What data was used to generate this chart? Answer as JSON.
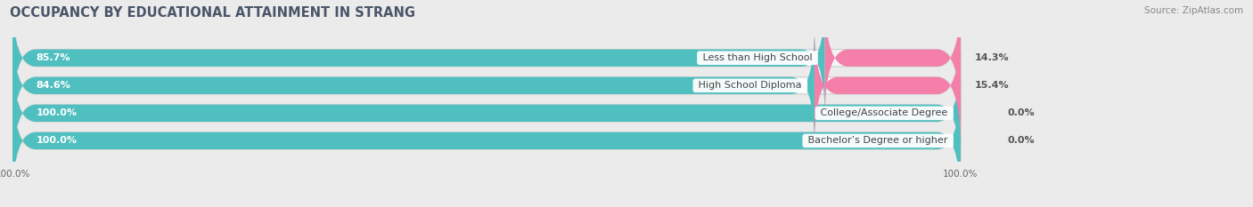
{
  "title": "OCCUPANCY BY EDUCATIONAL ATTAINMENT IN STRANG",
  "source": "Source: ZipAtlas.com",
  "categories": [
    "Less than High School",
    "High School Diploma",
    "College/Associate Degree",
    "Bachelor’s Degree or higher"
  ],
  "owner_pct": [
    85.7,
    84.6,
    100.0,
    100.0
  ],
  "renter_pct": [
    14.3,
    15.4,
    0.0,
    0.0
  ],
  "owner_color": "#50BFBF",
  "renter_color": "#F47FA8",
  "renter_color_light": "#F9BBD0",
  "background_color": "#EBEBEB",
  "bar_bg_color": "#F5F5F5",
  "bar_height": 0.62,
  "title_fontsize": 10.5,
  "label_fontsize": 8.0,
  "pct_fontsize": 8.0,
  "tick_fontsize": 7.5,
  "source_fontsize": 7.5,
  "legend_fontsize": 8.0
}
